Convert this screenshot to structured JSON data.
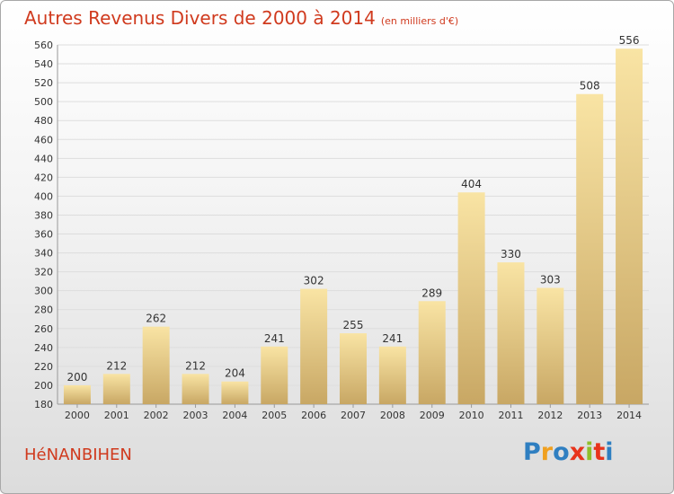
{
  "title": "Autres Revenus Divers de 2000 à 2014",
  "subtitle": "(en milliers d'€)",
  "location": "HéNANBIHEN",
  "logo": {
    "letters": [
      "P",
      "r",
      "o",
      "x",
      "i",
      "t",
      "i"
    ],
    "colors": [
      "#2f7fc1",
      "#f0a020",
      "#2f7fc1",
      "#e8341c",
      "#8fbf2a",
      "#e8341c",
      "#2f7fc1"
    ]
  },
  "chart_data": {
    "type": "bar",
    "title": "Autres Revenus Divers de 2000 à 2014",
    "subtitle": "(en milliers d'€)",
    "categories": [
      "2000",
      "2001",
      "2002",
      "2003",
      "2004",
      "2005",
      "2006",
      "2007",
      "2008",
      "2009",
      "2010",
      "2011",
      "2012",
      "2013",
      "2014"
    ],
    "values": [
      200,
      212,
      262,
      212,
      204,
      241,
      302,
      255,
      241,
      289,
      404,
      330,
      303,
      508,
      556
    ],
    "ylim": [
      180,
      560
    ],
    "ytick_step": 20,
    "grid": true,
    "bar_color_light": "#f7e0a0",
    "bar_color_dark": "#c9a866"
  }
}
